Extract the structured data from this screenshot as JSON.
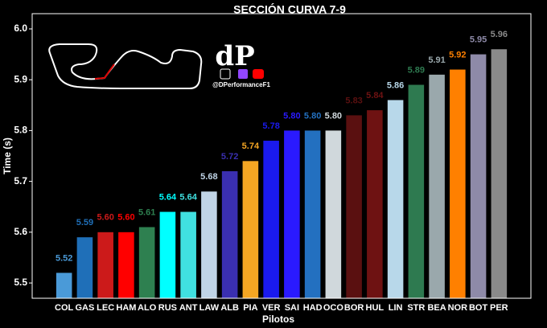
{
  "chart_data": {
    "type": "bar",
    "title": "SECCIÓN CURVA 7-9",
    "x_label": "Pilotos",
    "y_label": "Time (s)",
    "categories": [
      "COL",
      "GAS",
      "LEC",
      "HAM",
      "ALO",
      "RUS",
      "ANT",
      "LAW",
      "ALB",
      "PIA",
      "VER",
      "SAI",
      "HAD",
      "OCO",
      "BOR",
      "HUL",
      "LIN",
      "STR",
      "BEA",
      "NOR",
      "BOT",
      "PER"
    ],
    "values": [
      5.52,
      5.59,
      5.6,
      5.6,
      5.61,
      5.64,
      5.64,
      5.68,
      5.72,
      5.74,
      5.78,
      5.8,
      5.8,
      5.8,
      5.83,
      5.84,
      5.86,
      5.89,
      5.91,
      5.92,
      5.95,
      5.96
    ],
    "value_labels": [
      "5.52",
      "5.59",
      "5.60",
      "5.60",
      "5.61",
      "5.64",
      "5.64",
      "5.68",
      "5.72",
      "5.74",
      "5.78",
      "5.80",
      "5.80",
      "5.80",
      "5.83",
      "5.84",
      "5.86",
      "5.89",
      "5.91",
      "5.92",
      "5.95",
      "5.96"
    ],
    "colors": [
      "#4a9ad8",
      "#1f6fb8",
      "#cc1a1a",
      "#ff0000",
      "#2e8050",
      "#00ffff",
      "#40e0e0",
      "#c0d4e6",
      "#3a2fb0",
      "#f5a623",
      "#1a1aee",
      "#2a1aff",
      "#2370c0",
      "#d0d8dc",
      "#5a1010",
      "#6e1212",
      "#b8d8ea",
      "#2e7a50",
      "#9aa8ac",
      "#ff8000",
      "#8e8aa8",
      "#8a8a8a"
    ],
    "ylim": [
      5.47,
      6.03
    ],
    "yticks": [
      5.5,
      5.6,
      5.7,
      5.8,
      5.9,
      {
        "value": 6,
        "label": "6.0"
      }
    ]
  },
  "branding": {
    "logo": "dP",
    "handle": "@DPerformanceF1"
  }
}
